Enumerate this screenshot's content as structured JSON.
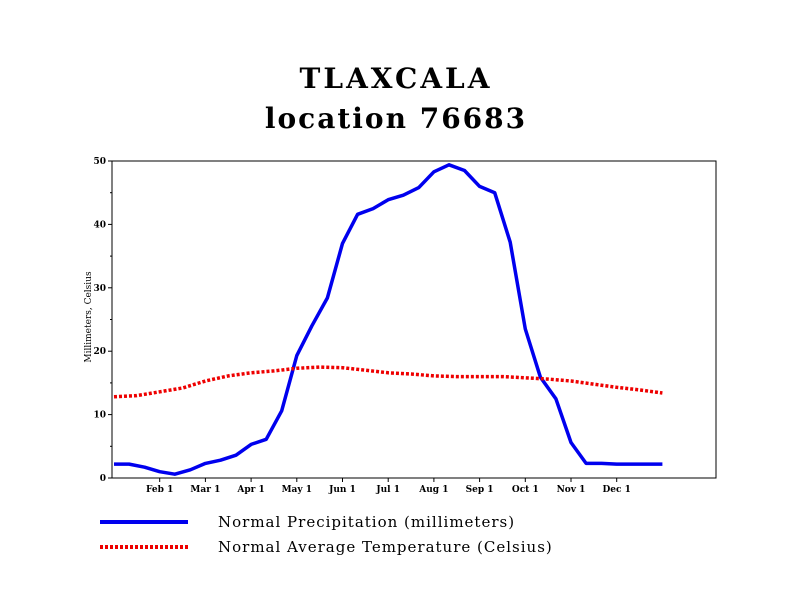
{
  "chart_data": {
    "type": "line",
    "title": "TLAXCALA",
    "subtitle": "location 76683",
    "ylabel": "Millimeters, Celsius",
    "ylim": [
      0,
      50
    ],
    "yticks": [
      0,
      10,
      20,
      30,
      40,
      50
    ],
    "xlim": [
      0,
      13
    ],
    "xticks": [
      {
        "label": "Feb 1",
        "value": 1
      },
      {
        "label": "Mar 1",
        "value": 2
      },
      {
        "label": "Apr 1",
        "value": 3
      },
      {
        "label": "May 1",
        "value": 4
      },
      {
        "label": "Jun 1",
        "value": 5
      },
      {
        "label": "Jul 1",
        "value": 6
      },
      {
        "label": "Aug 1",
        "value": 7
      },
      {
        "label": "Sep 1",
        "value": 8
      },
      {
        "label": "Oct 1",
        "value": 9
      },
      {
        "label": "Nov 1",
        "value": 10
      },
      {
        "label": "Dec 1",
        "value": 11
      }
    ],
    "series": [
      {
        "name": "Normal Precipitation (millimeters)",
        "color": "#0000ee",
        "style": "solid",
        "x": [
          0,
          0.33,
          0.67,
          1.0,
          1.33,
          1.67,
          2.0,
          2.33,
          2.67,
          3.0,
          3.33,
          3.67,
          4.0,
          4.33,
          4.67,
          5.0,
          5.33,
          5.67,
          6.0,
          6.33,
          6.67,
          7.0,
          7.33,
          7.67,
          8.0,
          8.33,
          8.67,
          9.0,
          9.33,
          9.67,
          10.0,
          10.33,
          10.67,
          11.0,
          11.33,
          11.67,
          12.0
        ],
        "y": [
          2.2,
          2.2,
          1.7,
          1.0,
          0.6,
          1.3,
          2.3,
          2.8,
          3.6,
          5.3,
          6.1,
          10.6,
          19.3,
          24.0,
          28.4,
          37.0,
          41.6,
          42.5,
          43.9,
          44.6,
          45.8,
          48.3,
          49.4,
          48.5,
          46.0,
          45.0,
          37.2,
          23.5,
          15.9,
          12.5,
          5.6,
          2.3,
          2.3,
          2.2,
          2.2,
          2.2,
          2.2
        ]
      },
      {
        "name": "Normal Average Temperature (Celsius)",
        "color": "#ee0000",
        "style": "dotted",
        "x": [
          0,
          0.5,
          1.0,
          1.5,
          2.0,
          2.5,
          3.0,
          3.5,
          4.0,
          4.5,
          5.0,
          5.5,
          6.0,
          6.5,
          7.0,
          7.5,
          8.0,
          8.5,
          9.0,
          9.5,
          10.0,
          10.5,
          11.0,
          11.5,
          12.0
        ],
        "y": [
          12.8,
          13.0,
          13.6,
          14.2,
          15.3,
          16.1,
          16.6,
          16.9,
          17.3,
          17.5,
          17.4,
          17.0,
          16.6,
          16.4,
          16.1,
          16.0,
          16.0,
          16.0,
          15.8,
          15.6,
          15.3,
          14.8,
          14.3,
          13.9,
          13.4
        ]
      }
    ]
  }
}
